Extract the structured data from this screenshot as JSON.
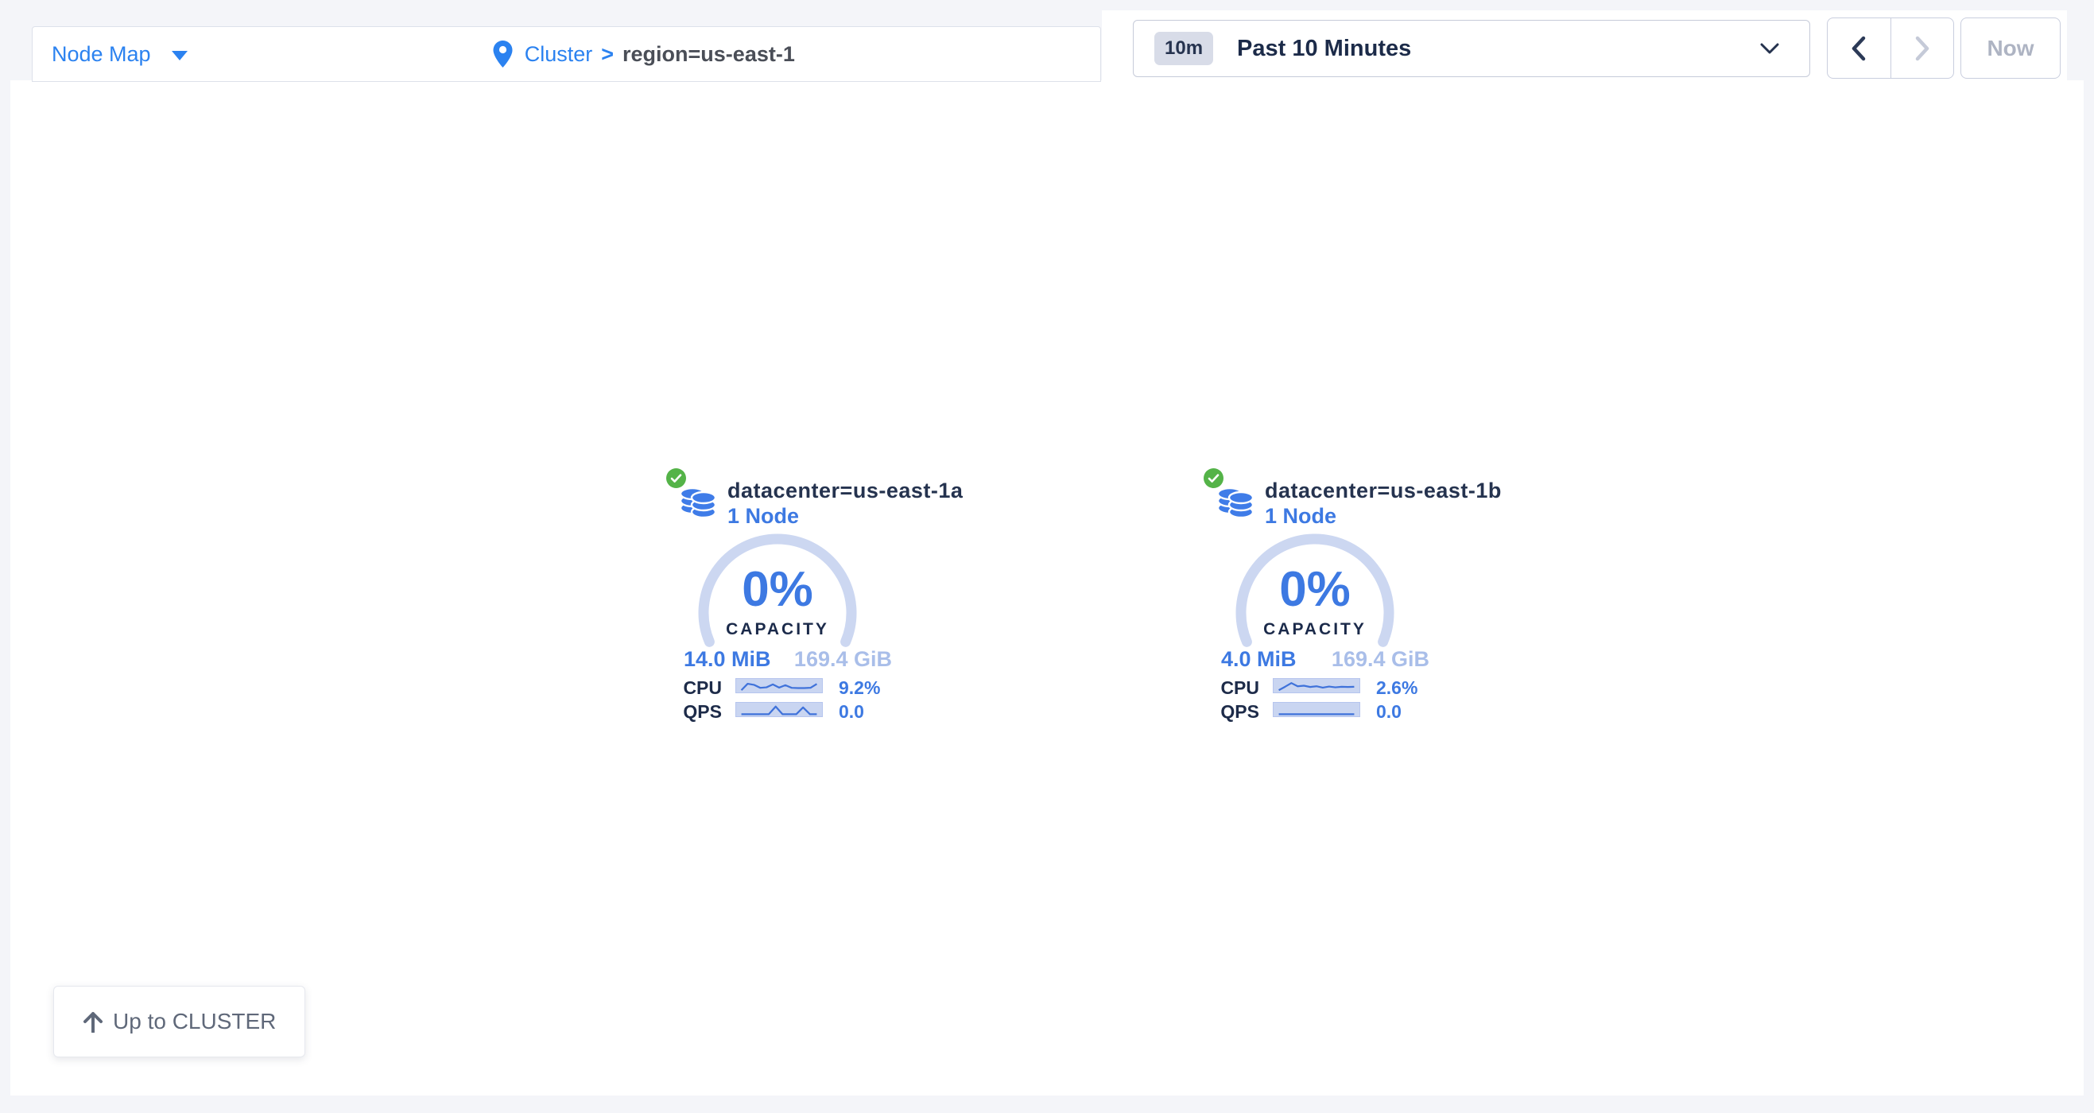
{
  "header": {
    "view_selector": {
      "label": "Node Map"
    },
    "breadcrumb": {
      "root": "Cluster",
      "separator": ">",
      "current": "region=us-east-1"
    },
    "time_window": {
      "badge": "10m",
      "label": "Past 10 Minutes"
    },
    "now_label": "Now"
  },
  "icons": {
    "view_caret": "caret-down-icon",
    "breadcrumb_pin": "location-pin-icon",
    "time_chevron": "chevron-down-icon",
    "nav_back": "chevron-left-icon",
    "nav_forward": "chevron-right-icon",
    "locality_status": "check-circle-icon",
    "locality": "database-stack-icon",
    "up_arrow": "arrow-up-icon"
  },
  "localities": [
    {
      "name": "datacenter=us-east-1a",
      "node_count": "1 Node",
      "capacity_percent": "0%",
      "capacity_label": "CAPACITY",
      "used": "14.0 MiB",
      "total": "169.4 GiB",
      "metrics": [
        {
          "label": "CPU",
          "value": "9.2%",
          "spark": [
            0.08,
            0.68,
            0.58,
            0.3,
            0.35,
            0.62,
            0.32,
            0.55,
            0.3,
            0.28,
            0.28,
            0.3,
            0.66
          ]
        },
        {
          "label": "QPS",
          "value": "0.0",
          "spark": [
            0.06,
            0.06,
            0.06,
            0.06,
            0.06,
            0.78,
            0.06,
            0.06,
            0.06,
            0.7,
            0.06,
            0.06
          ]
        }
      ]
    },
    {
      "name": "datacenter=us-east-1b",
      "node_count": "1 Node",
      "capacity_percent": "0%",
      "capacity_label": "CAPACITY",
      "used": "4.0 MiB",
      "total": "169.4 GiB",
      "metrics": [
        {
          "label": "CPU",
          "value": "2.6%",
          "spark": [
            0.08,
            0.4,
            0.75,
            0.45,
            0.5,
            0.38,
            0.45,
            0.32,
            0.42,
            0.35,
            0.4,
            0.38,
            0.4
          ]
        },
        {
          "label": "QPS",
          "value": "0.0",
          "spark": [
            0.06,
            0.06,
            0.06,
            0.06,
            0.06,
            0.06,
            0.06,
            0.06,
            0.06,
            0.06,
            0.06,
            0.06
          ]
        }
      ]
    }
  ],
  "up_button": {
    "label": "Up to CLUSTER"
  },
  "colors": {
    "page_background": "#f4f5f9",
    "accent_blue": "#3d79e2",
    "link_blue": "#2b82f0",
    "navy_text": "#1f2d4d",
    "muted_blue": "#a9bee9",
    "gauge_track": "#ccd7f1",
    "spark_fill": "#c9d5f1",
    "spark_line": "#3f72da",
    "status_green": "#54b348",
    "breadcrumb_current": "#4a4e57",
    "disabled_text": "#aeb4c3"
  }
}
